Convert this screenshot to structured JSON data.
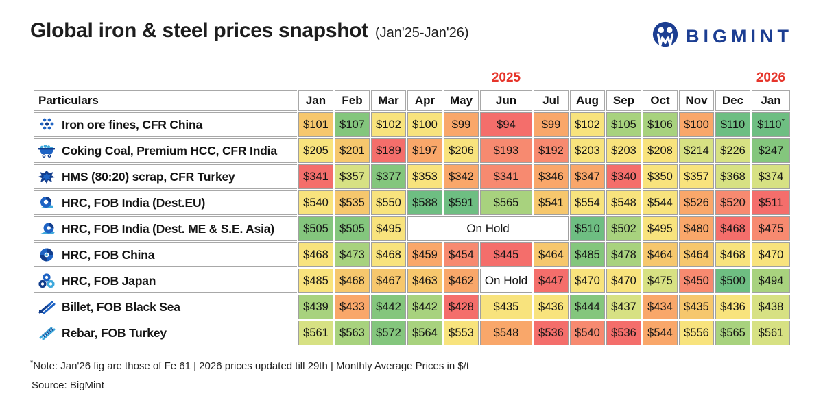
{
  "header": {
    "title": "Global iron & steel prices snapshot",
    "subtitle": "(Jan'25-Jan'26)",
    "logo_text": "BIGMINT"
  },
  "years": {
    "y2025": "2025",
    "y2026": "2026"
  },
  "palette": {
    "red": "#F46E6B",
    "salmon": "#F78A70",
    "orange": "#F9A76A",
    "gold": "#F6C76D",
    "yellow": "#F8E37D",
    "yellowgreen": "#D7E183",
    "lightgreen": "#A8D27E",
    "green": "#84C67D",
    "deepgreen": "#6EBE82",
    "white": "#FFFFFF"
  },
  "chart_data": {
    "type": "heatmap",
    "title": "Global iron & steel prices snapshot (Jan'25-Jan'26)",
    "unit": "$/t (Monthly Average Prices)",
    "categories": [
      "Jan'25",
      "Feb",
      "Mar",
      "Apr",
      "May",
      "Jun",
      "Jul",
      "Aug",
      "Sep",
      "Oct",
      "Nov",
      "Dec",
      "Jan'26"
    ],
    "series": [
      {
        "name": "Iron ore fines, CFR China",
        "values": [
          101,
          107,
          102,
          100,
          99,
          94,
          99,
          102,
          105,
          106,
          100,
          110,
          110
        ]
      },
      {
        "name": "Coking Coal, Premium HCC, CFR India",
        "values": [
          205,
          201,
          189,
          197,
          206,
          193,
          192,
          203,
          203,
          208,
          214,
          226,
          247
        ]
      },
      {
        "name": "HMS (80:20) scrap, CFR Turkey",
        "values": [
          341,
          357,
          377,
          353,
          342,
          341,
          346,
          347,
          340,
          350,
          357,
          368,
          374
        ]
      },
      {
        "name": "HRC, FOB India (Dest.EU)",
        "values": [
          540,
          535,
          550,
          588,
          591,
          565,
          541,
          554,
          548,
          544,
          526,
          520,
          511
        ]
      },
      {
        "name": "HRC, FOB India (Dest. ME & S.E. Asia)",
        "values": [
          505,
          505,
          495,
          null,
          null,
          null,
          null,
          510,
          502,
          495,
          480,
          468,
          475
        ],
        "note": "Apr-Jul On Hold"
      },
      {
        "name": "HRC, FOB China",
        "values": [
          468,
          473,
          468,
          459,
          454,
          445,
          464,
          485,
          478,
          464,
          464,
          468,
          470
        ]
      },
      {
        "name": "HRC, FOB Japan",
        "values": [
          485,
          468,
          467,
          463,
          462,
          null,
          447,
          470,
          470,
          475,
          450,
          500,
          494
        ],
        "note": "Jun On Hold"
      },
      {
        "name": "Billet, FOB Black Sea",
        "values": [
          439,
          433,
          442,
          442,
          428,
          435,
          436,
          444,
          437,
          434,
          435,
          436,
          438
        ]
      },
      {
        "name": "Rebar, FOB Turkey",
        "values": [
          561,
          563,
          572,
          564,
          553,
          548,
          536,
          540,
          536,
          544,
          556,
          565,
          561
        ]
      }
    ]
  },
  "table": {
    "particulars_header": "Particulars",
    "months": [
      "Jan",
      "Feb",
      "Mar",
      "Apr",
      "May",
      "Jun",
      "Jul",
      "Aug",
      "Sep",
      "Oct",
      "Nov",
      "Dec",
      "Jan"
    ],
    "rows": [
      {
        "label": "Iron ore fines, CFR China",
        "icon": "iron-ore-icon",
        "cells": [
          {
            "text": "$101",
            "color": "gold"
          },
          {
            "text": "$107",
            "color": "green"
          },
          {
            "text": "$102",
            "color": "yellow"
          },
          {
            "text": "$100",
            "color": "yellow"
          },
          {
            "text": "$99",
            "color": "orange"
          },
          {
            "text": "$94",
            "color": "red"
          },
          {
            "text": "$99",
            "color": "orange"
          },
          {
            "text": "$102",
            "color": "yellow"
          },
          {
            "text": "$105",
            "color": "lightgreen"
          },
          {
            "text": "$106",
            "color": "lightgreen"
          },
          {
            "text": "$100",
            "color": "orange"
          },
          {
            "text": "$110",
            "color": "deepgreen"
          },
          {
            "text": "$110",
            "color": "deepgreen",
            "sup": "*"
          }
        ]
      },
      {
        "label": "Coking Coal, Premium HCC, CFR India",
        "icon": "coal-cart-icon",
        "cells": [
          {
            "text": "$205",
            "color": "yellow"
          },
          {
            "text": "$201",
            "color": "gold"
          },
          {
            "text": "$189",
            "color": "red"
          },
          {
            "text": "$197",
            "color": "orange"
          },
          {
            "text": "$206",
            "color": "yellow"
          },
          {
            "text": "$193",
            "color": "salmon"
          },
          {
            "text": "$192",
            "color": "salmon"
          },
          {
            "text": "$203",
            "color": "yellow"
          },
          {
            "text": "$203",
            "color": "yellow"
          },
          {
            "text": "$208",
            "color": "yellow"
          },
          {
            "text": "$214",
            "color": "yellowgreen"
          },
          {
            "text": "$226",
            "color": "yellowgreen"
          },
          {
            "text": "$247",
            "color": "green"
          }
        ]
      },
      {
        "label": "HMS (80:20) scrap, CFR Turkey",
        "icon": "scrap-icon",
        "cells": [
          {
            "text": "$341",
            "color": "red"
          },
          {
            "text": "$357",
            "color": "yellowgreen"
          },
          {
            "text": "$377",
            "color": "green"
          },
          {
            "text": "$353",
            "color": "yellow"
          },
          {
            "text": "$342",
            "color": "orange"
          },
          {
            "text": "$341",
            "color": "salmon"
          },
          {
            "text": "$346",
            "color": "orange"
          },
          {
            "text": "$347",
            "color": "orange"
          },
          {
            "text": "$340",
            "color": "red"
          },
          {
            "text": "$350",
            "color": "yellow"
          },
          {
            "text": "$357",
            "color": "yellow"
          },
          {
            "text": "$368",
            "color": "yellowgreen"
          },
          {
            "text": "$374",
            "color": "yellowgreen"
          }
        ]
      },
      {
        "label": "HRC, FOB India (Dest.EU)",
        "icon": "coil-icon",
        "cells": [
          {
            "text": "$540",
            "color": "yellow"
          },
          {
            "text": "$535",
            "color": "gold"
          },
          {
            "text": "$550",
            "color": "yellow"
          },
          {
            "text": "$588",
            "color": "deepgreen"
          },
          {
            "text": "$591",
            "color": "deepgreen"
          },
          {
            "text": "$565",
            "color": "lightgreen"
          },
          {
            "text": "$541",
            "color": "gold"
          },
          {
            "text": "$554",
            "color": "yellow"
          },
          {
            "text": "$548",
            "color": "yellow"
          },
          {
            "text": "$544",
            "color": "yellow"
          },
          {
            "text": "$526",
            "color": "orange"
          },
          {
            "text": "$520",
            "color": "salmon"
          },
          {
            "text": "$511",
            "color": "red"
          }
        ]
      },
      {
        "label": "HRC, FOB India (Dest. ME & S.E. Asia)",
        "icon": "coil-sheet-icon",
        "cells": [
          {
            "text": "$505",
            "color": "green"
          },
          {
            "text": "$505",
            "color": "green"
          },
          {
            "text": "$495",
            "color": "yellow"
          },
          {
            "text": "On Hold",
            "color": "white",
            "span": 4
          },
          {
            "text": "$510",
            "color": "deepgreen"
          },
          {
            "text": "$502",
            "color": "lightgreen"
          },
          {
            "text": "$495",
            "color": "yellow"
          },
          {
            "text": "$480",
            "color": "orange"
          },
          {
            "text": "$468",
            "color": "red"
          },
          {
            "text": "$475",
            "color": "salmon"
          }
        ]
      },
      {
        "label": "HRC, FOB China",
        "icon": "coil-end-icon",
        "cells": [
          {
            "text": "$468",
            "color": "yellow"
          },
          {
            "text": "$473",
            "color": "lightgreen"
          },
          {
            "text": "$468",
            "color": "yellow"
          },
          {
            "text": "$459",
            "color": "orange"
          },
          {
            "text": "$454",
            "color": "salmon"
          },
          {
            "text": "$445",
            "color": "red"
          },
          {
            "text": "$464",
            "color": "gold"
          },
          {
            "text": "$485",
            "color": "green"
          },
          {
            "text": "$478",
            "color": "lightgreen"
          },
          {
            "text": "$464",
            "color": "gold"
          },
          {
            "text": "$464",
            "color": "gold"
          },
          {
            "text": "$468",
            "color": "yellow"
          },
          {
            "text": "$470",
            "color": "yellow"
          }
        ]
      },
      {
        "label": "HRC, FOB Japan",
        "icon": "coils-three-icon",
        "cells": [
          {
            "text": "$485",
            "color": "yellow"
          },
          {
            "text": "$468",
            "color": "gold"
          },
          {
            "text": "$467",
            "color": "gold"
          },
          {
            "text": "$463",
            "color": "gold"
          },
          {
            "text": "$462",
            "color": "orange"
          },
          {
            "text": "On Hold",
            "color": "white"
          },
          {
            "text": "$447",
            "color": "red"
          },
          {
            "text": "$470",
            "color": "yellow"
          },
          {
            "text": "$470",
            "color": "yellow"
          },
          {
            "text": "$475",
            "color": "yellowgreen"
          },
          {
            "text": "$450",
            "color": "salmon"
          },
          {
            "text": "$500",
            "color": "deepgreen"
          },
          {
            "text": "$494",
            "color": "lightgreen"
          }
        ]
      },
      {
        "label": "Billet, FOB Black Sea",
        "icon": "billet-icon",
        "cells": [
          {
            "text": "$439",
            "color": "lightgreen"
          },
          {
            "text": "$433",
            "color": "orange"
          },
          {
            "text": "$442",
            "color": "green"
          },
          {
            "text": "$442",
            "color": "lightgreen"
          },
          {
            "text": "$428",
            "color": "red"
          },
          {
            "text": "$435",
            "color": "yellow"
          },
          {
            "text": "$436",
            "color": "yellow"
          },
          {
            "text": "$444",
            "color": "green"
          },
          {
            "text": "$437",
            "color": "yellowgreen"
          },
          {
            "text": "$434",
            "color": "orange"
          },
          {
            "text": "$435",
            "color": "gold"
          },
          {
            "text": "$436",
            "color": "yellow"
          },
          {
            "text": "$438",
            "color": "yellowgreen"
          }
        ]
      },
      {
        "label": "Rebar, FOB Turkey",
        "icon": "rebar-icon",
        "cells": [
          {
            "text": "$561",
            "color": "yellowgreen"
          },
          {
            "text": "$563",
            "color": "lightgreen"
          },
          {
            "text": "$572",
            "color": "green"
          },
          {
            "text": "$564",
            "color": "lightgreen"
          },
          {
            "text": "$553",
            "color": "yellow"
          },
          {
            "text": "$548",
            "color": "orange"
          },
          {
            "text": "$536",
            "color": "red"
          },
          {
            "text": "$540",
            "color": "salmon"
          },
          {
            "text": "$536",
            "color": "red"
          },
          {
            "text": "$544",
            "color": "orange"
          },
          {
            "text": "$556",
            "color": "yellow"
          },
          {
            "text": "$565",
            "color": "lightgreen"
          },
          {
            "text": "$561",
            "color": "yellowgreen"
          }
        ]
      }
    ]
  },
  "footer": {
    "note_star": "*",
    "note": "Note: Jan'26 fig are those of Fe 61  |  2026 prices updated till 29th  |  Monthly Average Prices in $/t",
    "source": "Source: BigMint"
  }
}
